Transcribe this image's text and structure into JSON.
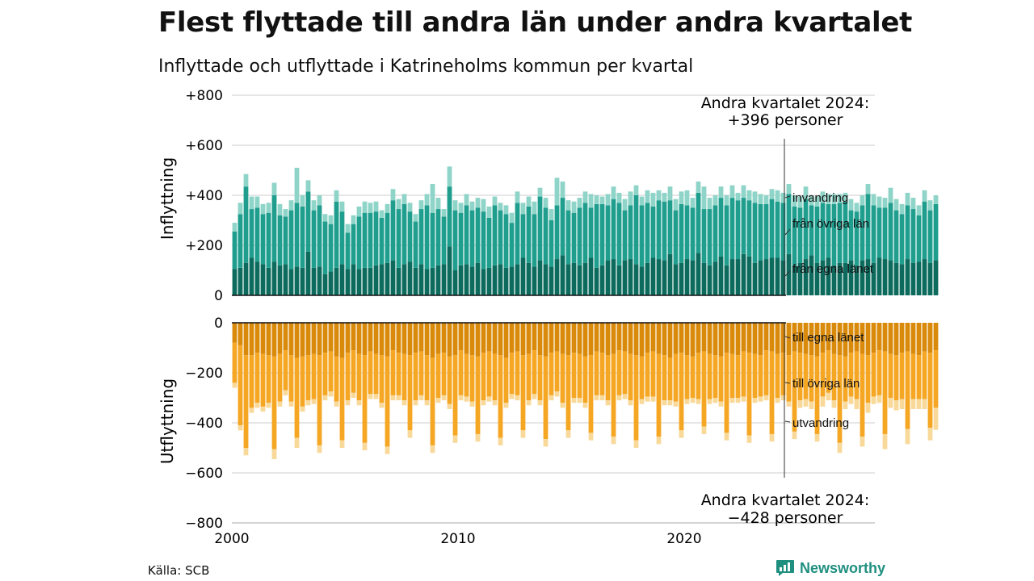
{
  "title": "Flest flyttade till andra län under andra kvartalet",
  "subtitle": "Inflyttade och utflyttade i Katrineholms kommun per kvartal",
  "source": "Källa: SCB",
  "brand": "Newsworthy",
  "colors": {
    "in_egna": "#0d6b5e",
    "in_ovriga": "#1f9e8e",
    "in_invandring": "#8fd4c8",
    "ut_egna": "#d98a0b",
    "ut_ovriga": "#f5a623",
    "ut_utvandring": "#f8d99a",
    "grid": "#dddddd",
    "axis": "#111111"
  },
  "annotations": {
    "top_line1": "Andra kvartalet 2024:",
    "top_line2": "+396 personer",
    "bottom_line1": "Andra kvartalet 2024:",
    "bottom_line2": "−428 personer"
  },
  "chart_data": [
    {
      "type": "bar",
      "stacked": true,
      "panel": "top",
      "ylabel": "Inflyttning",
      "ylim": [
        0,
        800
      ],
      "yticks": [
        0,
        200,
        400,
        600,
        800
      ],
      "ytick_labels": [
        "0",
        "+200",
        "+400",
        "+600",
        "+800"
      ],
      "x_start": 2000,
      "x_step": 0.25,
      "series": [
        {
          "name": "från egna länet",
          "values": [
            105,
            110,
            130,
            150,
            135,
            125,
            110,
            135,
            120,
            125,
            105,
            115,
            110,
            175,
            110,
            115,
            85,
            95,
            110,
            125,
            105,
            125,
            105,
            110,
            110,
            120,
            125,
            130,
            140,
            110,
            125,
            135,
            110,
            125,
            105,
            110,
            120,
            125,
            195,
            100,
            120,
            125,
            115,
            130,
            105,
            110,
            120,
            125,
            110,
            115,
            125,
            150,
            130,
            115,
            140,
            125,
            115,
            145,
            160,
            125,
            130,
            120,
            130,
            150,
            110,
            120,
            140,
            145,
            120,
            140,
            145,
            125,
            115,
            130,
            150,
            145,
            140,
            165,
            125,
            130,
            145,
            140,
            170,
            130,
            120,
            135,
            155,
            120,
            145,
            145,
            165,
            155,
            130,
            140,
            145,
            150,
            150,
            140,
            165,
            120,
            130,
            145,
            160,
            130,
            140,
            150,
            120,
            130,
            130,
            140,
            120,
            140,
            145,
            130,
            150,
            145,
            140,
            130,
            125,
            145,
            130,
            135,
            145,
            130,
            140
          ]
        },
        {
          "name": "från övriga län",
          "values": [
            150,
            215,
            305,
            195,
            215,
            200,
            220,
            265,
            200,
            190,
            235,
            255,
            245,
            240,
            230,
            245,
            210,
            190,
            265,
            210,
            145,
            160,
            210,
            220,
            220,
            215,
            185,
            200,
            240,
            235,
            240,
            200,
            185,
            220,
            255,
            220,
            225,
            190,
            240,
            240,
            210,
            235,
            225,
            220,
            230,
            200,
            240,
            215,
            215,
            175,
            245,
            175,
            225,
            210,
            255,
            225,
            185,
            215,
            230,
            215,
            200,
            230,
            240,
            200,
            255,
            245,
            220,
            240,
            250,
            200,
            215,
            275,
            245,
            240,
            205,
            235,
            235,
            215,
            215,
            235,
            215,
            210,
            240,
            215,
            225,
            225,
            235,
            240,
            245,
            235,
            225,
            225,
            240,
            225,
            220,
            235,
            225,
            230,
            240,
            235,
            220,
            240,
            200,
            225,
            230,
            215,
            245,
            240,
            245,
            200,
            215,
            220,
            260,
            230,
            200,
            205,
            230,
            210,
            200,
            215,
            215,
            185,
            230,
            210,
            225
          ]
        },
        {
          "name": "invandring",
          "values": [
            35,
            45,
            50,
            50,
            45,
            40,
            40,
            50,
            45,
            30,
            40,
            140,
            45,
            45,
            40,
            40,
            30,
            35,
            45,
            40,
            35,
            35,
            40,
            45,
            40,
            40,
            30,
            35,
            45,
            40,
            40,
            35,
            30,
            35,
            45,
            115,
            45,
            30,
            80,
            40,
            40,
            45,
            35,
            40,
            50,
            45,
            35,
            30,
            35,
            40,
            45,
            45,
            40,
            50,
            35,
            40,
            45,
            110,
            65,
            40,
            45,
            40,
            45,
            55,
            35,
            30,
            45,
            50,
            40,
            45,
            55,
            40,
            35,
            50,
            55,
            40,
            35,
            55,
            45,
            50,
            60,
            40,
            45,
            90,
            45,
            40,
            45,
            40,
            50,
            30,
            50,
            40,
            45,
            40,
            35,
            40,
            45,
            40,
            40,
            45,
            45,
            50,
            40,
            40,
            45,
            40,
            40,
            35,
            35,
            45,
            35,
            40,
            40,
            45,
            45,
            40,
            60,
            45,
            40,
            50,
            45,
            40,
            45,
            40,
            35
          ]
        }
      ]
    },
    {
      "type": "bar",
      "stacked": true,
      "panel": "bottom",
      "ylabel": "Utflyttning",
      "ylim": [
        -800,
        0
      ],
      "yticks": [
        0,
        -200,
        -400,
        -600,
        -800
      ],
      "ytick_labels": [
        "0",
        "−200",
        "−400",
        "−600",
        "−800"
      ],
      "x_start": 2000,
      "x_step": 0.25,
      "xticks": [
        2000,
        2010,
        2020
      ],
      "xtick_labels": [
        "2000",
        "2010",
        "2020"
      ],
      "series": [
        {
          "name": "till egna länet",
          "values": [
            -80,
            -90,
            -130,
            -130,
            -120,
            -125,
            -130,
            -135,
            -125,
            -110,
            -130,
            -140,
            -135,
            -130,
            -125,
            -130,
            -120,
            -115,
            -135,
            -140,
            -120,
            -110,
            -125,
            -130,
            -115,
            -125,
            -130,
            -135,
            -110,
            -120,
            -125,
            -130,
            -120,
            -115,
            -130,
            -140,
            -125,
            -120,
            -135,
            -130,
            -110,
            -125,
            -130,
            -135,
            -120,
            -115,
            -125,
            -130,
            -140,
            -120,
            -115,
            -130,
            -125,
            -110,
            -130,
            -135,
            -120,
            -115,
            -125,
            -130,
            -120,
            -125,
            -135,
            -130,
            -115,
            -120,
            -130,
            -125,
            -110,
            -115,
            -125,
            -130,
            -135,
            -120,
            -115,
            -125,
            -130,
            -140,
            -125,
            -120,
            -130,
            -135,
            -120,
            -115,
            -125,
            -130,
            -135,
            -120,
            -125,
            -130,
            -115,
            -120,
            -125,
            -130,
            -110,
            -115,
            -125,
            -120,
            -130,
            -115,
            -120,
            -125,
            -130,
            -135,
            -120,
            -110,
            -125,
            -130,
            -135,
            -120,
            -115,
            -125,
            -130,
            -120,
            -110,
            -115,
            -125,
            -130,
            -120,
            -115,
            -125,
            -130,
            -115,
            -120,
            -110
          ]
        },
        {
          "name": "till övriga län",
          "values": [
            -160,
            -320,
            -370,
            -210,
            -200,
            -210,
            -190,
            -370,
            -190,
            -160,
            -185,
            -320,
            -200,
            -180,
            -180,
            -360,
            -170,
            -160,
            -180,
            -330,
            -190,
            -170,
            -185,
            -350,
            -170,
            -160,
            -190,
            -360,
            -180,
            -170,
            -185,
            -300,
            -190,
            -175,
            -180,
            -350,
            -175,
            -170,
            -190,
            -320,
            -180,
            -170,
            -185,
            -310,
            -190,
            -180,
            -185,
            -330,
            -180,
            -165,
            -175,
            -300,
            -185,
            -175,
            -180,
            -330,
            -170,
            -160,
            -195,
            -300,
            -180,
            -175,
            -185,
            -310,
            -175,
            -170,
            -180,
            -330,
            -180,
            -170,
            -185,
            -340,
            -170,
            -175,
            -180,
            -330,
            -180,
            -170,
            -190,
            -310,
            -175,
            -165,
            -185,
            -300,
            -180,
            -170,
            -180,
            -320,
            -175,
            -170,
            -180,
            -330,
            -175,
            -165,
            -180,
            -330,
            -175,
            -170,
            -185,
            -320,
            -190,
            -180,
            -185,
            -310,
            -175,
            -170,
            -185,
            -350,
            -180,
            -175,
            -190,
            -330,
            -190,
            -175,
            -180,
            -330,
            -175,
            -180,
            -185,
            -310,
            -180,
            -175,
            -190,
            -300,
            -230
          ]
        },
        {
          "name": "utvandring",
          "values": [
            -20,
            -20,
            -30,
            -20,
            -20,
            -20,
            -20,
            -40,
            -20,
            -20,
            -20,
            -40,
            -20,
            -20,
            -20,
            -30,
            -20,
            -20,
            -20,
            -30,
            -20,
            -20,
            -20,
            -30,
            -20,
            -20,
            -20,
            -30,
            -20,
            -20,
            -20,
            -30,
            -20,
            -20,
            -20,
            -30,
            -20,
            -20,
            -20,
            -30,
            -20,
            -20,
            -20,
            -30,
            -20,
            -20,
            -20,
            -30,
            -20,
            -20,
            -20,
            -30,
            -20,
            -20,
            -20,
            -30,
            -20,
            -20,
            -20,
            -30,
            -20,
            -20,
            -20,
            -30,
            -20,
            -20,
            -20,
            -30,
            -20,
            -20,
            -20,
            -30,
            -20,
            -20,
            -20,
            -30,
            -20,
            -20,
            -20,
            -30,
            -20,
            -20,
            -20,
            -30,
            -20,
            -20,
            -20,
            -30,
            -20,
            -20,
            -20,
            -30,
            -20,
            -20,
            -20,
            -30,
            -20,
            -20,
            -20,
            -30,
            -30,
            -30,
            -30,
            -30,
            -40,
            -30,
            -30,
            -40,
            -30,
            -30,
            -40,
            -40,
            -40,
            -30,
            -30,
            -60,
            -40,
            -40,
            -40,
            -60,
            -40,
            -40,
            -40,
            -50,
            -88
          ]
        }
      ]
    }
  ]
}
